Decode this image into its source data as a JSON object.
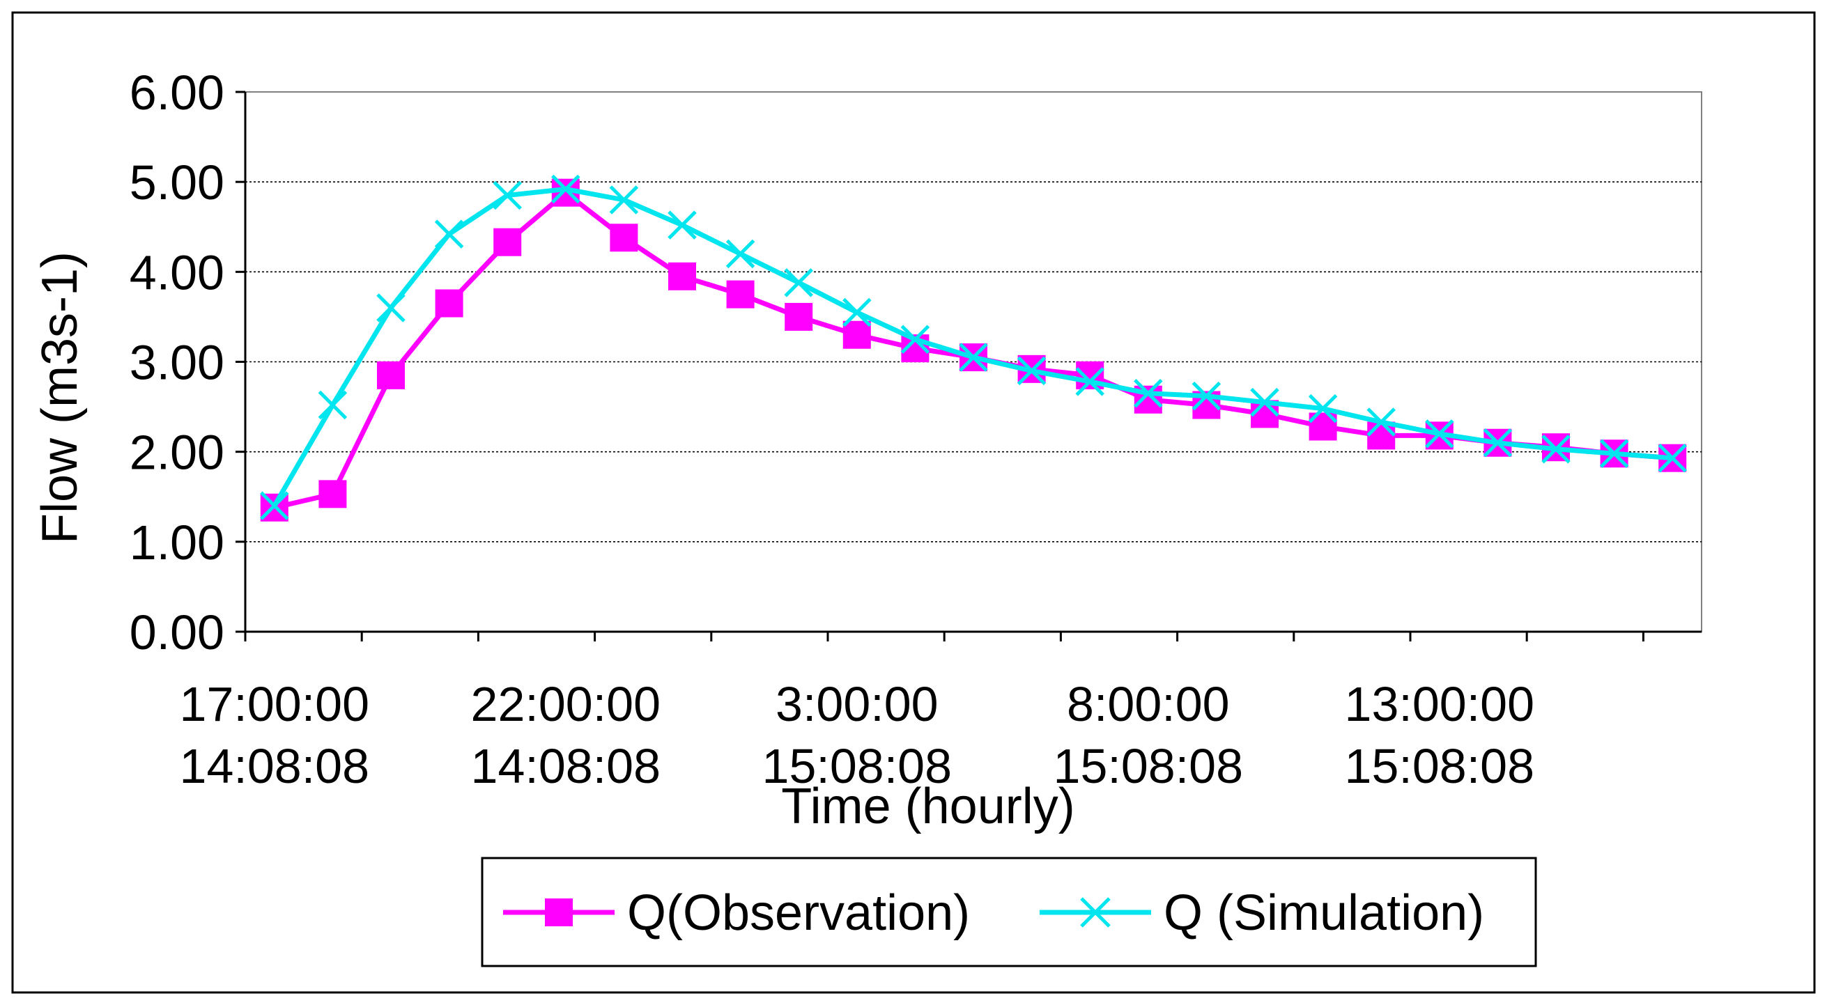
{
  "chart_data": {
    "type": "line",
    "title": "",
    "xlabel": "Time (hourly)",
    "ylabel": "Flow (m3s-1)",
    "ylim": [
      0,
      6
    ],
    "yticks": [
      "0.00",
      "1.00",
      "2.00",
      "3.00",
      "4.00",
      "5.00",
      "6.00"
    ],
    "grid": true,
    "x_category_count": 25,
    "xtick_labels": [
      {
        "category_index": 0,
        "line1": "17:00:00",
        "line2": "14:08:08"
      },
      {
        "category_index": 5,
        "line1": "22:00:00",
        "line2": "14:08:08"
      },
      {
        "category_index": 10,
        "line1": "3:00:00",
        "line2": "15:08:08"
      },
      {
        "category_index": 15,
        "line1": "8:00:00",
        "line2": "15:08:08"
      },
      {
        "category_index": 20,
        "line1": "13:00:00",
        "line2": "15:08:08"
      }
    ],
    "legend_position": "bottom",
    "series": [
      {
        "name": "Q(Observation)",
        "color": "#ff00ff",
        "marker": "square",
        "values": [
          1.38,
          1.53,
          2.85,
          3.65,
          4.33,
          4.88,
          4.38,
          3.95,
          3.75,
          3.5,
          3.3,
          3.15,
          3.05,
          2.92,
          2.85,
          2.58,
          2.52,
          2.42,
          2.28,
          2.18,
          2.18,
          2.1,
          2.05,
          1.98,
          1.93
        ]
      },
      {
        "name": "Q (Simulation)",
        "color": "#00e5ee",
        "marker": "x",
        "values": [
          1.4,
          2.52,
          3.6,
          4.42,
          4.85,
          4.92,
          4.8,
          4.52,
          4.2,
          3.88,
          3.55,
          3.25,
          3.05,
          2.9,
          2.78,
          2.65,
          2.62,
          2.55,
          2.48,
          2.33,
          2.2,
          2.1,
          2.03,
          1.98,
          1.93
        ]
      }
    ]
  }
}
